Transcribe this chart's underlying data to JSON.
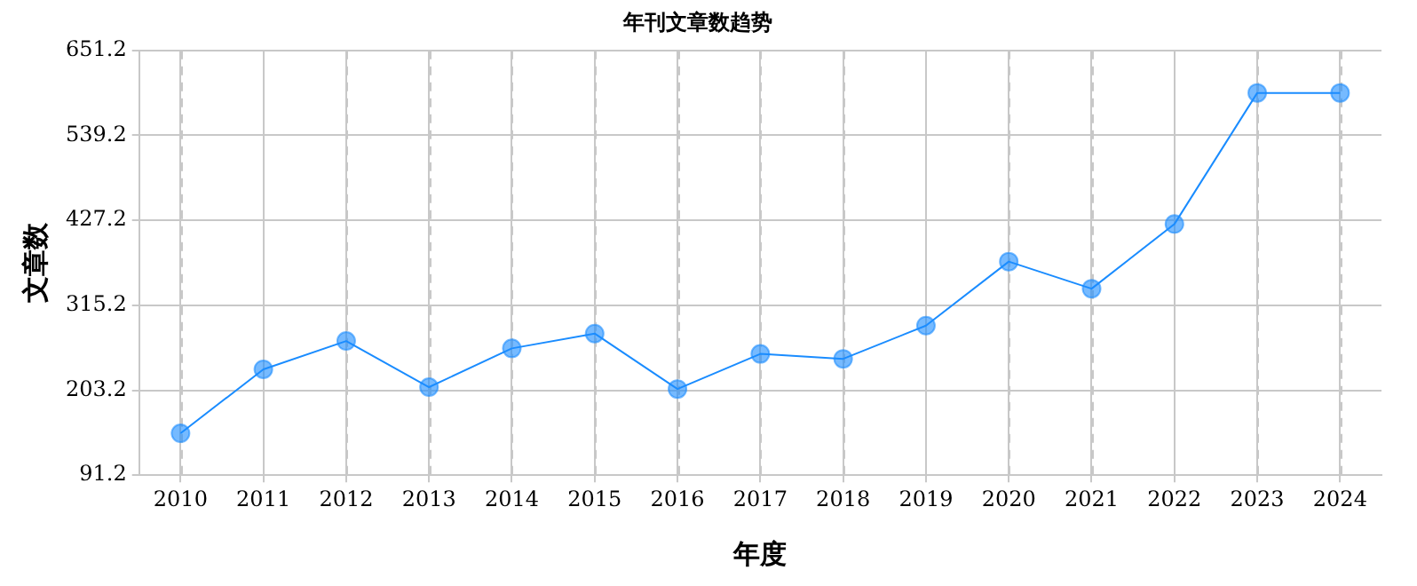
{
  "chart_data": {
    "type": "line",
    "title": "年刊文章数趋势",
    "xlabel": "年度",
    "ylabel": "文章数",
    "categories": [
      "2010",
      "2011",
      "2012",
      "2013",
      "2014",
      "2015",
      "2016",
      "2017",
      "2018",
      "2019",
      "2020",
      "2021",
      "2022",
      "2023",
      "2024"
    ],
    "series": [
      {
        "color": "#1a8cff",
        "values": [
          146.4,
          230.8,
          268.1,
          207.3,
          258.4,
          277.9,
          204.8,
          251.1,
          244.6,
          288.4,
          372.8,
          337.1,
          422.3,
          595.2,
          595.2
        ]
      }
    ],
    "ylim": [
      91.2,
      651.2
    ],
    "yticks": [
      91.2,
      203.2,
      315.2,
      427.2,
      539.2,
      651.2
    ],
    "grid": true,
    "legend": false,
    "marker": "circle",
    "line_style": "solid"
  }
}
